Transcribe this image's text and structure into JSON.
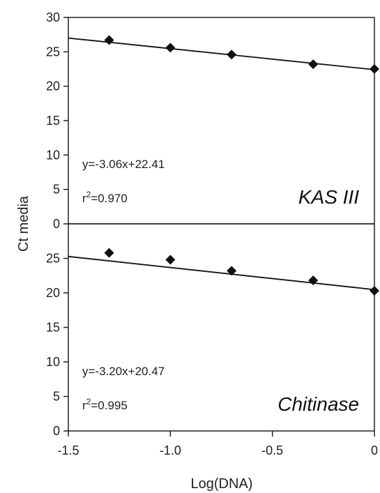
{
  "chart_data": [
    {
      "type": "scatter",
      "panel": "top",
      "gene": "KAS III",
      "equation": "y=-3.06x+22.41",
      "r2_prefix": "r",
      "r2_exp": "2",
      "r2_value": "=0.970",
      "x": [
        -1.3,
        -1.0,
        -0.7,
        -0.3,
        0.0
      ],
      "y": [
        26.7,
        25.6,
        24.6,
        23.2,
        22.5
      ],
      "fit": {
        "slope": -3.06,
        "intercept": 22.41
      },
      "xlim": [
        -1.5,
        0
      ],
      "ylim": [
        0,
        30
      ],
      "yticks": [
        "0",
        "5",
        "10",
        "15",
        "20",
        "25",
        "30"
      ]
    },
    {
      "type": "scatter",
      "panel": "bottom",
      "gene": "Chitinase",
      "equation": "y=-3.20x+20.47",
      "r2_prefix": "r",
      "r2_exp": "2",
      "r2_value": "=0.995",
      "x": [
        -1.3,
        -1.0,
        -0.7,
        -0.3,
        0.0
      ],
      "y": [
        25.8,
        24.8,
        23.2,
        21.8,
        20.3
      ],
      "fit": {
        "slope": -3.2,
        "intercept": 20.47
      },
      "xlim": [
        -1.5,
        0
      ],
      "ylim": [
        0,
        30
      ],
      "yticks": [
        "0",
        "5",
        "10",
        "15",
        "20",
        "25"
      ]
    }
  ],
  "xticks": [
    "-1.5",
    "-1.0",
    "-0.5",
    "0"
  ],
  "xlabel": "Log(DNA)",
  "ylabel": "Ct media",
  "marker_color": "#111111",
  "line_color": "#111111"
}
